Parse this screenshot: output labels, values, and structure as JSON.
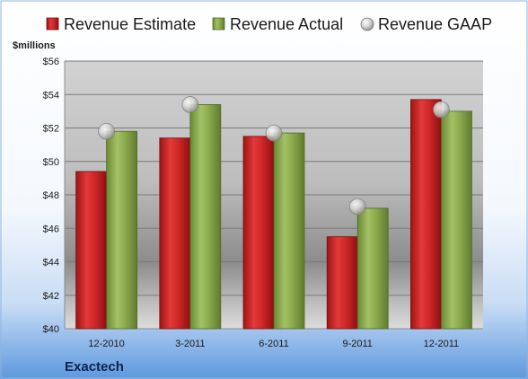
{
  "company": "Exactech",
  "chart_data": {
    "type": "bar",
    "ylabel": "$millions",
    "ylim": [
      40,
      56
    ],
    "ytick_step": 2,
    "ytick_prefix": "$",
    "grid": true,
    "legend_position": "top",
    "categories": [
      "12-2010",
      "3-2011",
      "6-2011",
      "9-2011",
      "12-2011"
    ],
    "series": [
      {
        "name": "Revenue Estimate",
        "kind": "bar",
        "color": "#d42a2a",
        "values": [
          49.4,
          51.4,
          51.5,
          45.5,
          53.7
        ]
      },
      {
        "name": "Revenue Actual",
        "kind": "bar",
        "color": "#8cab4e",
        "values": [
          51.8,
          53.4,
          51.7,
          47.2,
          53.0
        ]
      },
      {
        "name": "Revenue GAAP",
        "kind": "marker",
        "color": "#c0c0c0",
        "values": [
          51.8,
          53.4,
          51.7,
          47.3,
          53.1
        ]
      }
    ]
  }
}
